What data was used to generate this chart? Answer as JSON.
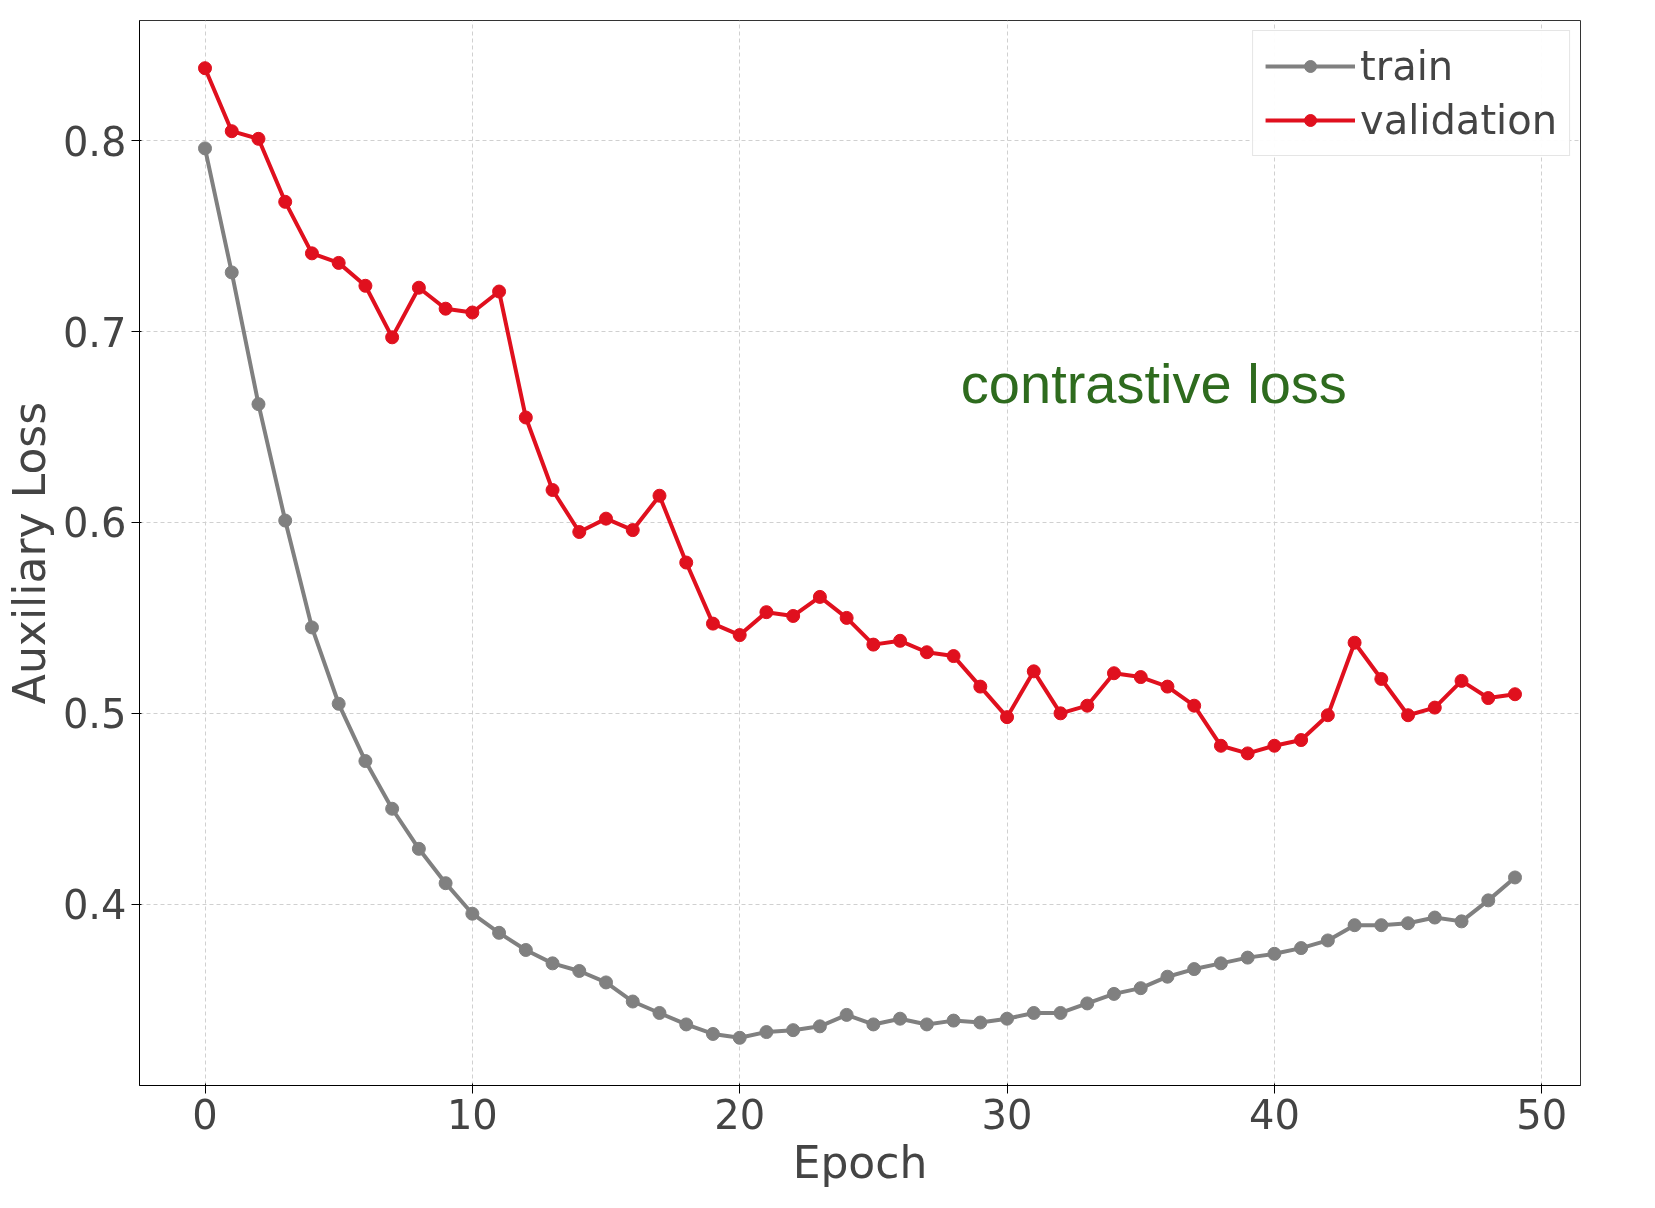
{
  "chart_data": {
    "type": "line",
    "xlabel": "Epoch",
    "ylabel": "Auxiliary Loss",
    "x": [
      0,
      1,
      2,
      3,
      4,
      5,
      6,
      7,
      8,
      9,
      10,
      11,
      12,
      13,
      14,
      15,
      16,
      17,
      18,
      19,
      20,
      21,
      22,
      23,
      24,
      25,
      26,
      27,
      28,
      29,
      30,
      31,
      32,
      33,
      34,
      35,
      36,
      37,
      38,
      39,
      40,
      41,
      42,
      43,
      44,
      45,
      46,
      47,
      48,
      49
    ],
    "series": [
      {
        "name": "train",
        "color": "#808080",
        "values": [
          0.796,
          0.731,
          0.662,
          0.601,
          0.545,
          0.505,
          0.475,
          0.45,
          0.429,
          0.411,
          0.395,
          0.385,
          0.376,
          0.369,
          0.365,
          0.359,
          0.349,
          0.343,
          0.337,
          0.332,
          0.33,
          0.333,
          0.334,
          0.336,
          0.342,
          0.337,
          0.34,
          0.337,
          0.339,
          0.338,
          0.34,
          0.343,
          0.343,
          0.348,
          0.353,
          0.356,
          0.362,
          0.366,
          0.369,
          0.372,
          0.374,
          0.377,
          0.381,
          0.389,
          0.389,
          0.39,
          0.393,
          0.391,
          0.402,
          0.414
        ]
      },
      {
        "name": "validation",
        "color": "#e0101e",
        "values": [
          0.838,
          0.805,
          0.801,
          0.768,
          0.741,
          0.736,
          0.724,
          0.697,
          0.723,
          0.712,
          0.71,
          0.721,
          0.655,
          0.617,
          0.595,
          0.602,
          0.596,
          0.614,
          0.579,
          0.547,
          0.541,
          0.553,
          0.551,
          0.561,
          0.55,
          0.536,
          0.538,
          0.532,
          0.53,
          0.514,
          0.498,
          0.522,
          0.5,
          0.504,
          0.521,
          0.519,
          0.514,
          0.504,
          0.483,
          0.479,
          0.483,
          0.486,
          0.499,
          0.537,
          0.518,
          0.499,
          0.503,
          0.517,
          0.508,
          0.51
        ]
      }
    ],
    "xlim": [
      -2.45,
      51.45
    ],
    "ylim": [
      0.305,
      0.863
    ],
    "xticks": [
      0,
      10,
      20,
      30,
      40,
      50
    ],
    "yticks": [
      0.4,
      0.5,
      0.6,
      0.7,
      0.8
    ],
    "grid": true,
    "legend": "top right",
    "marker": "circle",
    "line_style": "solid",
    "annotations": [
      "contrastive loss"
    ]
  }
}
